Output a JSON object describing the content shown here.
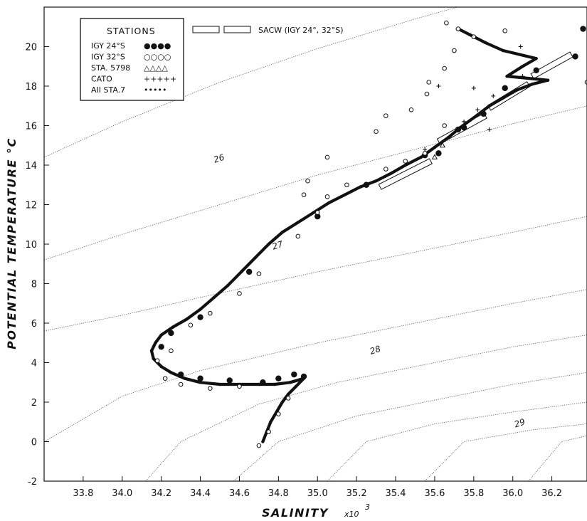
{
  "chart_data": {
    "type": "scatter",
    "title": "",
    "xlabel": "SALINITY",
    "xlabel_unit": "x10",
    "xlabel_unit_exp": "3",
    "ylabel": "POTENTIAL TEMPERATURE °C",
    "xlim": [
      33.6,
      36.38
    ],
    "ylim": [
      -2,
      22
    ],
    "x_ticks": [
      "33.8",
      "34.0",
      "34.2",
      "34.4",
      "34.6",
      "34.8",
      "35.0",
      "35.2",
      "35.4",
      "35.6",
      "35.8",
      "36.0",
      "36.2"
    ],
    "y_ticks": [
      "-2",
      "0",
      "2",
      "4",
      "6",
      "8",
      "10",
      "12",
      "14",
      "16",
      "18",
      "20"
    ],
    "grid": false,
    "legend": {
      "placement": "top-left",
      "title": "STATIONS",
      "entries": [
        {
          "label": "IGY 24°S",
          "symbol": "●●●●"
        },
        {
          "label": "IGY 32°S",
          "symbol": "○○○○"
        },
        {
          "label": "STA. 5798",
          "symbol": "△△△△"
        },
        {
          "label": "CATO",
          "symbol": "+++++"
        },
        {
          "label": "AII STA.7",
          "symbol": "•••••"
        }
      ],
      "sacw_label": "SACW (IGY 24°, 32°S)"
    },
    "isopycnals": [
      {
        "label": "26",
        "points": [
          [
            33.6,
            14.4
          ],
          [
            34.0,
            16.2
          ],
          [
            34.5,
            18.2
          ],
          [
            35.0,
            19.9
          ],
          [
            35.5,
            21.4
          ],
          [
            35.9,
            22.5
          ]
        ]
      },
      {
        "label": "27",
        "points": [
          [
            33.6,
            9.2
          ],
          [
            34.0,
            10.5
          ],
          [
            34.5,
            12.0
          ],
          [
            35.0,
            13.5
          ],
          [
            35.5,
            14.8
          ],
          [
            36.0,
            16.1
          ],
          [
            36.38,
            17.0
          ]
        ]
      },
      {
        "label": "28",
        "points": [
          [
            33.6,
            5.6
          ],
          [
            34.0,
            6.4
          ],
          [
            34.4,
            7.3
          ],
          [
            35.0,
            8.6
          ],
          [
            35.5,
            9.6
          ],
          [
            36.0,
            10.6
          ],
          [
            36.38,
            11.4
          ]
        ]
      },
      {
        "label": "29",
        "points": [
          [
            33.6,
            0.0
          ],
          [
            34.0,
            2.3
          ],
          [
            34.4,
            3.6
          ],
          [
            35.0,
            5.0
          ],
          [
            35.5,
            6.0
          ],
          [
            36.0,
            7.0
          ],
          [
            36.38,
            7.7
          ]
        ]
      },
      {
        "label": "",
        "points": [
          [
            34.12,
            -2.0
          ],
          [
            34.3,
            0.0
          ],
          [
            34.7,
            1.9
          ],
          [
            35.1,
            3.0
          ],
          [
            35.6,
            4.0
          ],
          [
            36.0,
            4.8
          ],
          [
            36.38,
            5.4
          ]
        ]
      },
      {
        "label": "",
        "points": [
          [
            34.57,
            -2.0
          ],
          [
            34.8,
            0.0
          ],
          [
            35.2,
            1.3
          ],
          [
            35.6,
            2.1
          ],
          [
            36.0,
            2.9
          ],
          [
            36.38,
            3.5
          ]
        ]
      },
      {
        "label": "",
        "points": [
          [
            35.05,
            -2.0
          ],
          [
            35.25,
            0.0
          ],
          [
            35.6,
            0.9
          ],
          [
            36.0,
            1.5
          ],
          [
            36.38,
            2.0
          ]
        ]
      },
      {
        "label": "",
        "points": [
          [
            35.55,
            -2.0
          ],
          [
            35.75,
            0.0
          ],
          [
            36.1,
            0.6
          ],
          [
            36.38,
            0.9
          ]
        ]
      },
      {
        "label": "",
        "points": [
          [
            36.08,
            -2.0
          ],
          [
            36.25,
            0.0
          ],
          [
            36.38,
            0.3
          ]
        ]
      }
    ],
    "isopycnal_label_positions": [
      {
        "label": "26",
        "x": 34.5,
        "y": 14.2
      },
      {
        "label": "27",
        "x": 34.8,
        "y": 9.8
      },
      {
        "label": "28",
        "x": 35.3,
        "y": 4.5
      },
      {
        "label": "29",
        "x": 36.04,
        "y": 0.8
      }
    ],
    "sacw_boxes": [
      [
        [
          35.32,
          12.9
        ],
        [
          35.58,
          14.2
        ]
      ],
      [
        [
          35.62,
          15.2
        ],
        [
          35.86,
          16.5
        ]
      ],
      [
        [
          35.88,
          16.9
        ],
        [
          36.08,
          18.1
        ]
      ],
      [
        [
          36.1,
          18.5
        ],
        [
          36.3,
          19.6
        ]
      ]
    ],
    "series": [
      {
        "name": "AII STA.7",
        "marker": "small-dot",
        "points": [
          [
            34.72,
            0.0
          ],
          [
            34.74,
            0.5
          ],
          [
            34.76,
            1.0
          ],
          [
            34.79,
            1.5
          ],
          [
            34.82,
            2.0
          ],
          [
            34.85,
            2.4
          ],
          [
            34.89,
            2.8
          ],
          [
            34.93,
            3.2
          ],
          [
            34.86,
            3.0
          ],
          [
            34.78,
            2.9
          ],
          [
            34.7,
            2.9
          ],
          [
            34.6,
            2.9
          ],
          [
            34.5,
            2.9
          ],
          [
            34.4,
            3.0
          ],
          [
            34.32,
            3.2
          ],
          [
            34.25,
            3.5
          ],
          [
            34.2,
            3.8
          ],
          [
            34.16,
            4.2
          ],
          [
            34.15,
            4.6
          ],
          [
            34.17,
            5.0
          ],
          [
            34.2,
            5.4
          ],
          [
            34.26,
            5.8
          ],
          [
            34.33,
            6.2
          ],
          [
            34.4,
            6.7
          ],
          [
            34.47,
            7.3
          ],
          [
            34.54,
            7.9
          ],
          [
            34.61,
            8.6
          ],
          [
            34.68,
            9.3
          ],
          [
            34.75,
            10.0
          ],
          [
            34.82,
            10.6
          ],
          [
            34.9,
            11.1
          ],
          [
            34.98,
            11.6
          ],
          [
            35.06,
            12.1
          ],
          [
            35.14,
            12.5
          ],
          [
            35.22,
            12.9
          ],
          [
            35.3,
            13.2
          ],
          [
            35.38,
            13.6
          ],
          [
            35.45,
            14.0
          ],
          [
            35.53,
            14.4
          ],
          [
            35.6,
            14.9
          ],
          [
            35.67,
            15.4
          ],
          [
            35.73,
            15.9
          ],
          [
            35.8,
            16.4
          ],
          [
            35.88,
            17.0
          ],
          [
            35.95,
            17.4
          ],
          [
            36.02,
            17.8
          ],
          [
            36.1,
            18.1
          ],
          [
            36.18,
            18.3
          ],
          [
            35.97,
            18.5
          ],
          [
            36.05,
            19.0
          ],
          [
            36.12,
            19.4
          ],
          [
            35.95,
            19.8
          ],
          [
            35.86,
            20.2
          ],
          [
            35.78,
            20.6
          ],
          [
            35.72,
            20.9
          ]
        ]
      },
      {
        "name": "IGY 24°S",
        "marker": "filled-circle",
        "points": [
          [
            34.93,
            3.3
          ],
          [
            34.88,
            3.4
          ],
          [
            34.8,
            3.2
          ],
          [
            34.72,
            3.0
          ],
          [
            34.55,
            3.1
          ],
          [
            34.4,
            3.2
          ],
          [
            34.3,
            3.4
          ],
          [
            34.2,
            4.8
          ],
          [
            34.25,
            5.5
          ],
          [
            34.4,
            6.3
          ],
          [
            34.65,
            8.6
          ],
          [
            35.0,
            11.4
          ],
          [
            35.25,
            13.0
          ],
          [
            35.55,
            14.5
          ],
          [
            35.72,
            15.8
          ],
          [
            35.85,
            16.6
          ],
          [
            35.96,
            17.9
          ],
          [
            36.12,
            18.8
          ],
          [
            36.32,
            19.5
          ],
          [
            36.36,
            20.9
          ],
          [
            35.62,
            14.6
          ],
          [
            35.75,
            15.9
          ]
        ]
      },
      {
        "name": "IGY 32°S",
        "marker": "open-circle",
        "points": [
          [
            34.7,
            -0.2
          ],
          [
            34.75,
            0.5
          ],
          [
            34.8,
            1.4
          ],
          [
            34.85,
            2.2
          ],
          [
            34.6,
            2.8
          ],
          [
            34.45,
            2.7
          ],
          [
            34.3,
            2.9
          ],
          [
            34.22,
            3.2
          ],
          [
            34.18,
            4.1
          ],
          [
            34.25,
            4.6
          ],
          [
            34.35,
            5.9
          ],
          [
            34.45,
            6.5
          ],
          [
            34.6,
            7.5
          ],
          [
            34.7,
            8.5
          ],
          [
            34.9,
            10.4
          ],
          [
            35.0,
            11.6
          ],
          [
            35.05,
            12.4
          ],
          [
            35.15,
            13.0
          ],
          [
            35.35,
            13.8
          ],
          [
            35.45,
            14.2
          ],
          [
            35.55,
            14.6
          ],
          [
            35.65,
            16.0
          ],
          [
            35.56,
            17.6
          ],
          [
            35.48,
            16.8
          ],
          [
            35.35,
            16.5
          ],
          [
            35.3,
            15.7
          ],
          [
            35.66,
            21.2
          ],
          [
            35.72,
            20.9
          ],
          [
            35.8,
            20.5
          ],
          [
            35.96,
            20.8
          ],
          [
            35.7,
            19.8
          ],
          [
            35.65,
            18.9
          ],
          [
            35.57,
            18.2
          ],
          [
            35.05,
            14.4
          ],
          [
            34.95,
            13.2
          ],
          [
            34.93,
            12.5
          ],
          [
            36.38,
            18.2
          ]
        ]
      },
      {
        "name": "STA. 5798",
        "marker": "triangle",
        "points": [
          [
            35.6,
            14.4
          ],
          [
            35.64,
            15.0
          ]
        ]
      },
      {
        "name": "CATO",
        "marker": "plus",
        "points": [
          [
            35.75,
            16.2
          ],
          [
            35.82,
            16.8
          ],
          [
            35.9,
            17.5
          ],
          [
            35.8,
            17.9
          ],
          [
            35.62,
            18.0
          ],
          [
            36.05,
            18.5
          ],
          [
            36.04,
            20.0
          ],
          [
            35.55,
            14.8
          ],
          [
            35.88,
            15.8
          ]
        ]
      }
    ]
  }
}
